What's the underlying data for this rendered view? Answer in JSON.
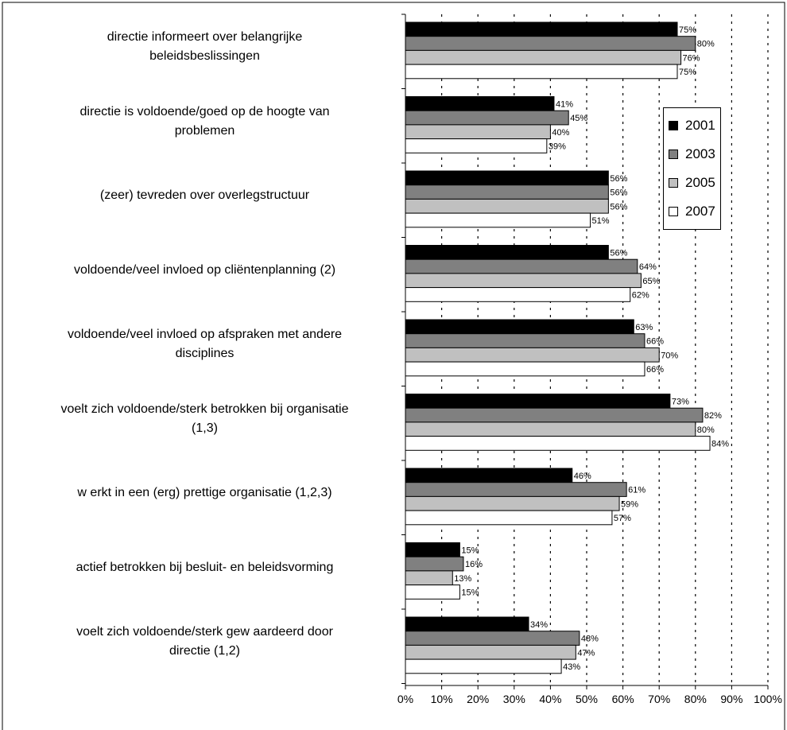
{
  "chart_data": {
    "type": "bar",
    "orientation": "horizontal",
    "categories": [
      "directie informeert over belangrijke\nbeleidsbeslissingen",
      "directie is voldoende/goed op de hoogte van\nproblemen",
      "(zeer) tevreden over overlegstructuur",
      "voldoende/veel invloed op cliëntenplanning (2)",
      "voldoende/veel invloed op afspraken met andere\ndisciplines",
      "voelt zich voldoende/sterk betrokken bij organisatie\n(1,3)",
      "w erkt in een (erg) prettige organisatie (1,2,3)",
      "actief betrokken bij besluit- en beleidsvorming",
      "voelt zich voldoende/sterk gew aardeerd door\ndirectie (1,2)"
    ],
    "series": [
      {
        "name": "2001",
        "color": "#000000",
        "values": [
          75,
          41,
          56,
          56,
          63,
          73,
          46,
          15,
          34
        ]
      },
      {
        "name": "2003",
        "color": "#808080",
        "values": [
          80,
          45,
          56,
          64,
          66,
          82,
          61,
          16,
          48
        ]
      },
      {
        "name": "2005",
        "color": "#c0c0c0",
        "values": [
          76,
          40,
          56,
          65,
          70,
          80,
          59,
          13,
          47
        ]
      },
      {
        "name": "2007",
        "color": "#ffffff",
        "values": [
          75,
          39,
          51,
          62,
          66,
          84,
          57,
          15,
          43
        ]
      }
    ],
    "xlim": [
      0,
      100
    ],
    "xticks": [
      "0%",
      "10%",
      "20%",
      "30%",
      "40%",
      "50%",
      "60%",
      "70%",
      "80%",
      "90%",
      "100%"
    ],
    "value_suffix": "%",
    "grid": "vertical-dotted",
    "legend_position": "right"
  }
}
